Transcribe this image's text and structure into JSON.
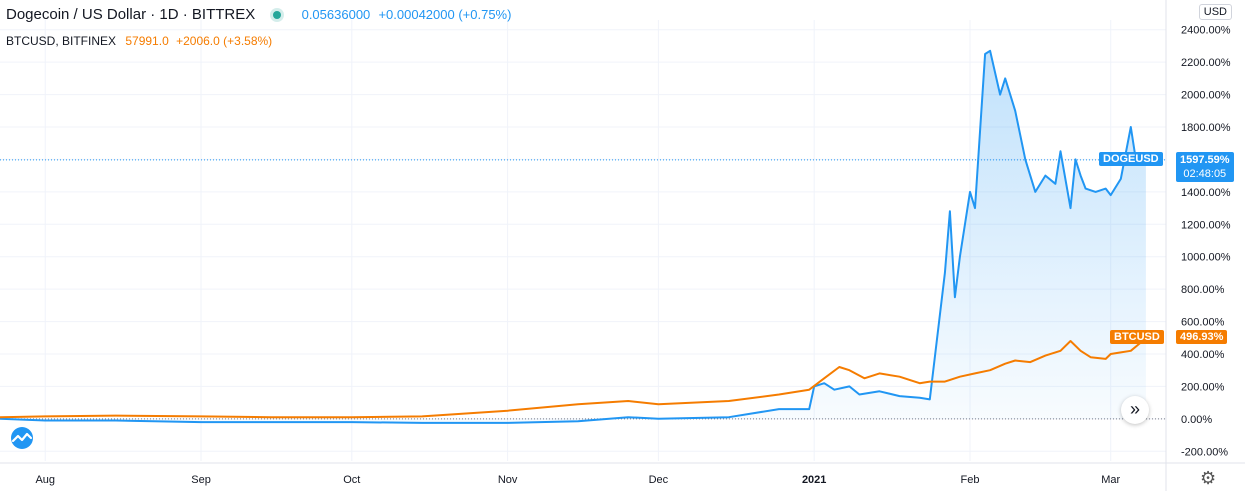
{
  "header": {
    "symbol": "Dogecoin / US Dollar · 1D · BITTREX",
    "price": "0.05636000",
    "change": "+0.00042000 (+0.75%)",
    "compare_symbol": "BTCUSD, BITFINEX",
    "compare_price": "57991.0",
    "compare_change": "+2006.0 (+3.58%)"
  },
  "currency_button": "USD",
  "badges": {
    "doge_label": "DOGEUSD",
    "doge_value": "1597.59%",
    "doge_countdown": "02:48:05",
    "btc_label": "BTCUSD",
    "btc_value": "496.93%"
  },
  "colors": {
    "doge": "#2196f3",
    "btc": "#f57c00",
    "grid": "#f0f3fa"
  },
  "icons": {
    "scroll": "double-chevron-right-icon",
    "settings": "gear-icon",
    "logo": "tradingview-logo-icon"
  },
  "chart_data": {
    "type": "line",
    "title": "",
    "xlabel": "",
    "ylabel": "",
    "ylim": [
      -260,
      2460
    ],
    "y_ticks": [
      -200,
      0,
      200,
      400,
      600,
      800,
      1000,
      1200,
      1400,
      1600,
      1800,
      2000,
      2200,
      2400
    ],
    "y_tick_labels": [
      "-200.00%",
      "0.00%",
      "200.00%",
      "400.00%",
      "600.00%",
      "800.00%",
      "1000.00%",
      "1200.00%",
      "1400.00%",
      "1600.00%",
      "1800.00%",
      "2000.00%",
      "2200.00%",
      "2400.00%"
    ],
    "x_range": [
      "2020-07-23",
      "2021-03-12"
    ],
    "x_ticks": [
      {
        "label": "Aug",
        "date": "2020-08-01"
      },
      {
        "label": "Sep",
        "date": "2020-09-01"
      },
      {
        "label": "Oct",
        "date": "2020-10-01"
      },
      {
        "label": "Nov",
        "date": "2020-11-01"
      },
      {
        "label": "Dec",
        "date": "2020-12-01"
      },
      {
        "label": "2021",
        "date": "2021-01-01"
      },
      {
        "label": "Feb",
        "date": "2021-02-01"
      },
      {
        "label": "Mar",
        "date": "2021-03-01"
      }
    ],
    "grid": true,
    "series": [
      {
        "name": "DOGEUSD",
        "x": [
          "2020-07-23",
          "2020-08-01",
          "2020-08-15",
          "2020-09-01",
          "2020-09-15",
          "2020-10-01",
          "2020-10-15",
          "2020-11-01",
          "2020-11-15",
          "2020-11-25",
          "2020-12-01",
          "2020-12-15",
          "2020-12-25",
          "2020-12-31",
          "2021-01-01",
          "2021-01-03",
          "2021-01-05",
          "2021-01-08",
          "2021-01-10",
          "2021-01-14",
          "2021-01-18",
          "2021-01-22",
          "2021-01-24",
          "2021-01-27",
          "2021-01-28",
          "2021-01-29",
          "2021-01-30",
          "2021-02-01",
          "2021-02-02",
          "2021-02-04",
          "2021-02-05",
          "2021-02-07",
          "2021-02-08",
          "2021-02-09",
          "2021-02-10",
          "2021-02-12",
          "2021-02-14",
          "2021-02-16",
          "2021-02-18",
          "2021-02-19",
          "2021-02-21",
          "2021-02-22",
          "2021-02-23",
          "2021-02-24",
          "2021-02-26",
          "2021-02-28",
          "2021-03-01",
          "2021-03-03",
          "2021-03-05",
          "2021-03-06",
          "2021-03-07",
          "2021-03-08"
        ],
        "values": [
          0,
          -10,
          -10,
          -20,
          -20,
          -20,
          -25,
          -25,
          -15,
          10,
          0,
          10,
          60,
          60,
          200,
          220,
          180,
          200,
          150,
          170,
          140,
          130,
          120,
          900,
          1280,
          750,
          1000,
          1400,
          1300,
          2250,
          2270,
          2000,
          2100,
          2000,
          1900,
          1600,
          1400,
          1500,
          1450,
          1650,
          1300,
          1600,
          1500,
          1420,
          1400,
          1420,
          1380,
          1480,
          1800,
          1600,
          1580,
          1597.59
        ]
      },
      {
        "name": "BTCUSD",
        "x": [
          "2020-07-23",
          "2020-08-01",
          "2020-08-15",
          "2020-09-01",
          "2020-09-15",
          "2020-10-01",
          "2020-10-15",
          "2020-11-01",
          "2020-11-15",
          "2020-11-25",
          "2020-12-01",
          "2020-12-15",
          "2020-12-25",
          "2020-12-31",
          "2021-01-03",
          "2021-01-06",
          "2021-01-08",
          "2021-01-11",
          "2021-01-14",
          "2021-01-18",
          "2021-01-22",
          "2021-01-24",
          "2021-01-27",
          "2021-01-30",
          "2021-02-02",
          "2021-02-05",
          "2021-02-08",
          "2021-02-10",
          "2021-02-13",
          "2021-02-16",
          "2021-02-19",
          "2021-02-21",
          "2021-02-23",
          "2021-02-25",
          "2021-02-28",
          "2021-03-01",
          "2021-03-03",
          "2021-03-05",
          "2021-03-08"
        ],
        "values": [
          10,
          15,
          20,
          15,
          10,
          10,
          15,
          50,
          90,
          110,
          90,
          110,
          150,
          180,
          250,
          320,
          300,
          250,
          280,
          260,
          220,
          230,
          230,
          260,
          280,
          300,
          340,
          360,
          350,
          390,
          420,
          480,
          420,
          380,
          370,
          400,
          410,
          420,
          496.93
        ]
      }
    ],
    "legend": "top-left",
    "last_values": {
      "DOGEUSD": "1597.59%",
      "BTCUSD": "496.93%"
    }
  }
}
